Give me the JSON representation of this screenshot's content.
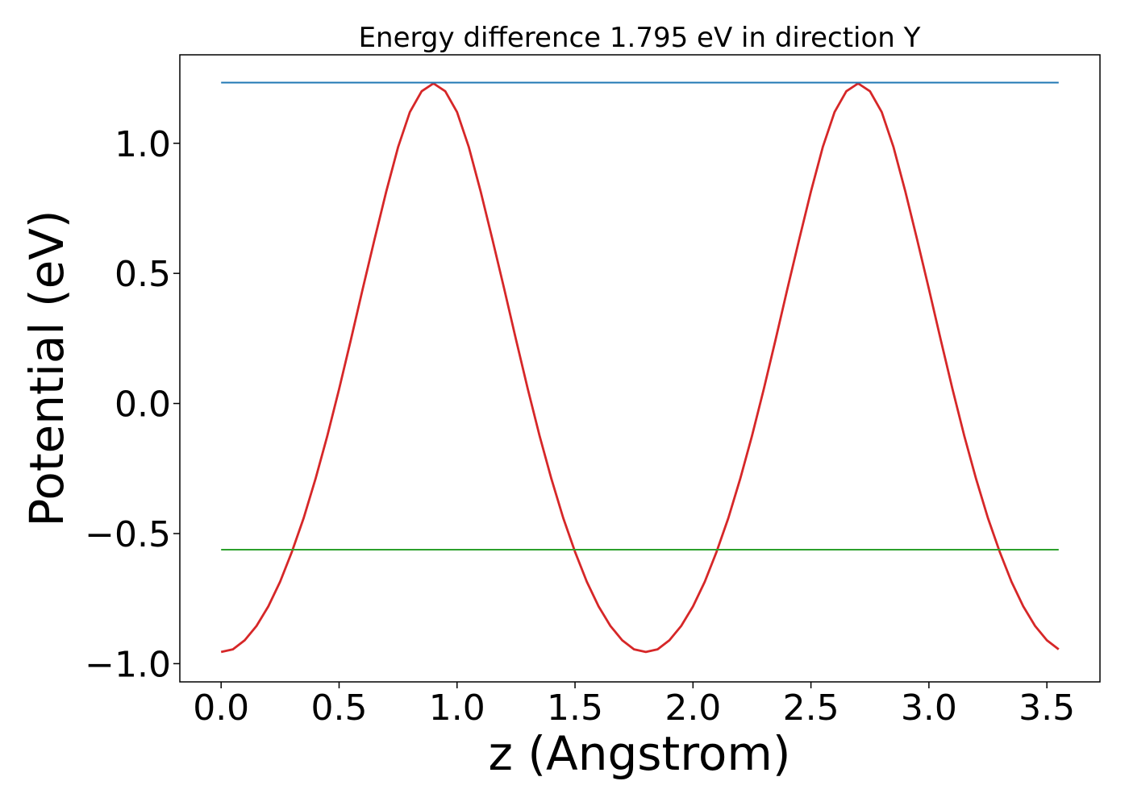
{
  "chart_data": {
    "type": "line",
    "title": "Energy difference 1.795 eV in direction Y",
    "xlabel": "z (Angstrom)",
    "ylabel": "Potential (eV)",
    "xlim": [
      -0.175,
      3.725
    ],
    "ylim": [
      -1.07,
      1.34
    ],
    "xticks": [
      0.0,
      0.5,
      1.0,
      1.5,
      2.0,
      2.5,
      3.0,
      3.5
    ],
    "xtick_labels": [
      "0.0",
      "0.5",
      "1.0",
      "1.5",
      "2.0",
      "2.5",
      "3.0",
      "3.5"
    ],
    "yticks": [
      -1.0,
      -0.5,
      0.0,
      0.5,
      1.0
    ],
    "ytick_labels": [
      "−1.0",
      "−0.5",
      "0.0",
      "0.5",
      "1.0"
    ],
    "grid": false,
    "series": [
      {
        "color": "#d62728",
        "x": [
          0.0,
          0.05,
          0.1,
          0.15,
          0.2,
          0.25,
          0.3,
          0.35,
          0.4,
          0.45,
          0.5,
          0.55,
          0.6,
          0.65,
          0.7,
          0.75,
          0.8,
          0.85,
          0.9,
          0.95,
          1.0,
          1.05,
          1.1,
          1.15,
          1.2,
          1.25,
          1.3,
          1.35,
          1.4,
          1.45,
          1.5,
          1.55,
          1.6,
          1.65,
          1.7,
          1.75,
          1.8,
          1.85,
          1.9,
          1.95,
          2.0,
          2.05,
          2.1,
          2.15,
          2.2,
          2.25,
          2.3,
          2.35,
          2.4,
          2.45,
          2.5,
          2.55,
          2.6,
          2.65,
          2.7,
          2.75,
          2.8,
          2.85,
          2.9,
          2.95,
          3.0,
          3.05,
          3.1,
          3.15,
          3.2,
          3.25,
          3.3,
          3.35,
          3.4,
          3.45,
          3.5,
          3.55
        ],
        "y": [
          -0.955,
          -0.945,
          -0.91,
          -0.855,
          -0.78,
          -0.685,
          -0.57,
          -0.44,
          -0.29,
          -0.125,
          0.055,
          0.245,
          0.44,
          0.63,
          0.815,
          0.985,
          1.12,
          1.2,
          1.23,
          1.2,
          1.12,
          0.985,
          0.815,
          0.63,
          0.44,
          0.245,
          0.055,
          -0.125,
          -0.29,
          -0.44,
          -0.57,
          -0.685,
          -0.78,
          -0.855,
          -0.91,
          -0.945,
          -0.955,
          -0.945,
          -0.91,
          -0.855,
          -0.78,
          -0.685,
          -0.57,
          -0.44,
          -0.29,
          -0.125,
          0.055,
          0.245,
          0.44,
          0.63,
          0.815,
          0.985,
          1.12,
          1.2,
          1.23,
          1.2,
          1.12,
          0.985,
          0.815,
          0.63,
          0.44,
          0.245,
          0.055,
          -0.125,
          -0.29,
          -0.44,
          -0.57,
          -0.685,
          -0.78,
          -0.855,
          -0.91,
          -0.945
        ]
      },
      {
        "color": "#1f77b4",
        "x": [
          0.0,
          3.55
        ],
        "y": [
          1.233,
          1.233
        ]
      },
      {
        "color": "#2ca02c",
        "x": [
          0.0,
          3.55
        ],
        "y": [
          -0.562,
          -0.562
        ]
      }
    ]
  }
}
